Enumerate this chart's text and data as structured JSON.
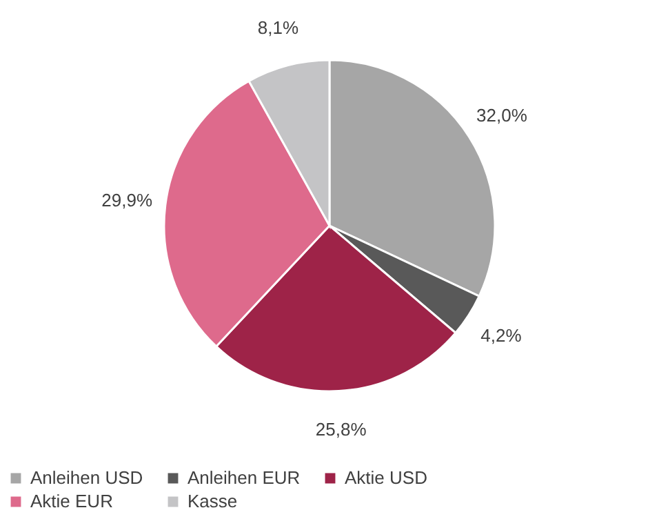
{
  "chart_data": {
    "type": "pie",
    "categories": [
      "Anleihen USD",
      "Anleihen EUR",
      "Aktie USD",
      "Aktie EUR",
      "Kasse"
    ],
    "values": [
      32.0,
      4.2,
      25.8,
      29.9,
      8.1
    ],
    "colors": [
      "#a6a6a6",
      "#595959",
      "#9e2348",
      "#de6a8c",
      "#c4c4c6"
    ],
    "value_labels": [
      "32,0%",
      "4,2%",
      "25,8%",
      "29,9%",
      "8,1%"
    ],
    "legend": "bottom"
  }
}
